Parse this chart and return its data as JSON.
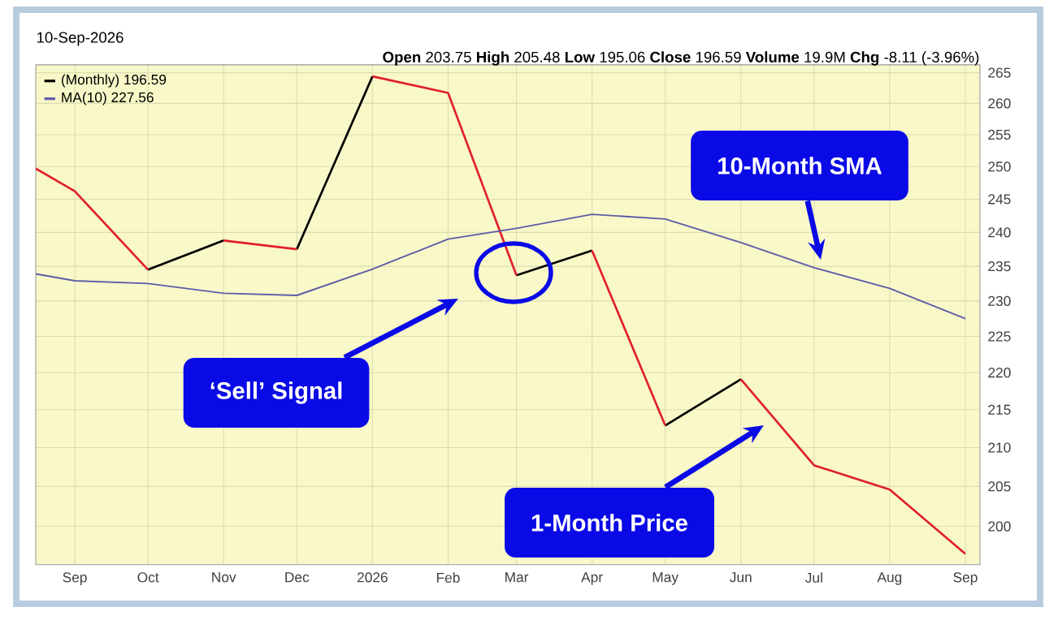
{
  "chart_data": {
    "type": "line",
    "annotations": [
      "10-Sep-2026",
      "**Open** 203.75 **High** 205.48 **Low** 195.06 **Close** 196.59 **Volume** 19.9M **Chg** -8.11 (-3.96%)",
      "10-Month SMA",
      "‘Sell’ Signal",
      "1-Month Price"
    ],
    "x": [
      "2025-08-16",
      "2025-09",
      "2025-10",
      "2025-11",
      "2025-12",
      "2026-01",
      "2026-02",
      "2026-03",
      "2026-04",
      "2026-05",
      "2026-06",
      "2026-07",
      "2026-08",
      "2026-09"
    ],
    "xlim": [
      "2025-08-16",
      "2026-09-07"
    ],
    "xticks": [
      {
        "value": "2025-09",
        "label": "Sep"
      },
      {
        "value": "2025-10",
        "label": "Oct"
      },
      {
        "value": "2025-11",
        "label": "Nov"
      },
      {
        "value": "2025-12",
        "label": "Dec"
      },
      {
        "value": "2026-01",
        "label": "2026"
      },
      {
        "value": "2026-02",
        "label": "Feb"
      },
      {
        "value": "2026-03",
        "label": "Mar"
      },
      {
        "value": "2026-04",
        "label": "Apr"
      },
      {
        "value": "2026-05",
        "label": "May"
      },
      {
        "value": "2026-06",
        "label": "Jun"
      },
      {
        "value": "2026-07",
        "label": "Jul"
      },
      {
        "value": "2026-08",
        "label": "Aug"
      },
      {
        "value": "2026-09",
        "label": "Sep"
      }
    ],
    "ylim": [
      195.3,
      266.3
    ],
    "yticks": [
      200,
      205,
      210,
      215,
      220,
      225,
      230,
      235,
      240,
      245,
      250,
      255,
      260,
      265
    ],
    "log": true,
    "grid": true,
    "legend": "top left",
    "series": [
      {
        "name": "(Monthly) 196.59",
        "color": "#000000",
        "x": [
          "2025-10",
          "2025-11",
          null,
          "2025-12",
          "2026-01",
          null,
          "2026-03",
          "2026-04",
          null,
          "2026-05",
          "2026-06"
        ],
        "values": [
          234.5,
          238.8,
          null,
          237.5,
          264.4,
          null,
          233.7,
          237.3,
          null,
          212.9,
          219.1
        ]
      },
      {
        "color": "#e0202a",
        "x": [
          "2025-08-16",
          "2025-09",
          "2025-10",
          null,
          "2025-11",
          "2025-12",
          null,
          "2026-01",
          "2026-02",
          "2026-03",
          null,
          "2026-04",
          "2026-05",
          null,
          "2026-06",
          "2026-07",
          "2026-08",
          "2026-09"
        ],
        "values": [
          249.7,
          246.2,
          234.5,
          null,
          238.8,
          237.5,
          null,
          264.4,
          261.7,
          233.7,
          null,
          237.3,
          212.9,
          null,
          219.1,
          207.7,
          204.6,
          196.6
        ]
      },
      {
        "name": "MA(10) 227.56",
        "color": "#5c5ca8",
        "values": [
          233.9,
          232.9,
          232.5,
          231.1,
          230.8,
          234.6,
          239.0,
          240.6,
          242.7,
          242.0,
          238.5,
          234.8,
          231.8,
          227.5
        ]
      }
    ]
  }
}
